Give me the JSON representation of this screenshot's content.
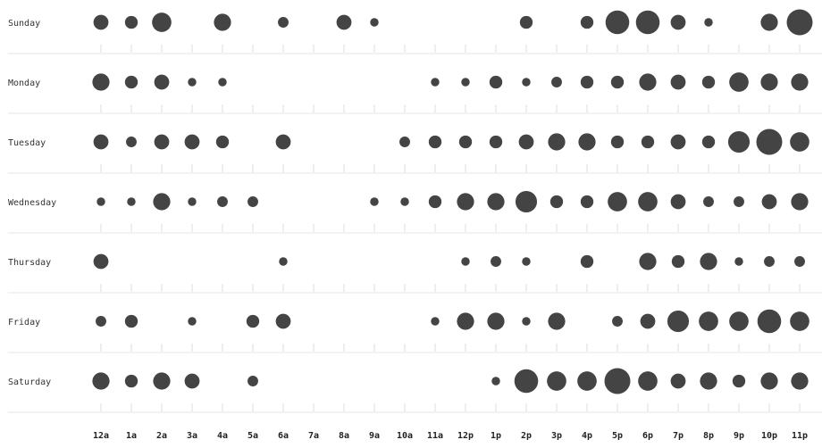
{
  "chart_data": {
    "type": "scatter",
    "title": "",
    "xlabel": "",
    "ylabel": "",
    "x": [
      "12a",
      "1a",
      "2a",
      "3a",
      "4a",
      "5a",
      "6a",
      "7a",
      "8a",
      "9a",
      "10a",
      "11a",
      "12p",
      "1p",
      "2p",
      "3p",
      "4p",
      "5p",
      "6p",
      "7p",
      "8p",
      "9p",
      "10p",
      "11p"
    ],
    "y": [
      "Sunday",
      "Monday",
      "Tuesday",
      "Wednesday",
      "Thursday",
      "Friday",
      "Saturday"
    ],
    "size_encoding": "relative magnitude (0 = no dot)",
    "grid": false,
    "colors": {
      "dot": "#444444",
      "separator": "#e6e6e6",
      "tick": "#dddddd"
    },
    "values": [
      [
        5,
        4,
        7,
        0,
        6,
        0,
        3,
        0,
        5,
        2,
        0,
        0,
        0,
        0,
        4,
        0,
        4,
        9,
        9,
        5,
        2,
        0,
        6,
        10
      ],
      [
        6,
        4,
        5,
        2,
        2,
        0,
        0,
        0,
        0,
        0,
        0,
        2,
        2,
        4,
        2,
        3,
        4,
        4,
        6,
        5,
        4,
        7,
        6,
        6
      ],
      [
        5,
        3,
        5,
        5,
        4,
        0,
        5,
        0,
        0,
        0,
        3,
        4,
        4,
        4,
        5,
        6,
        6,
        4,
        4,
        5,
        4,
        8,
        10,
        7
      ],
      [
        2,
        2,
        6,
        2,
        3,
        3,
        0,
        0,
        0,
        2,
        2,
        4,
        6,
        6,
        8,
        4,
        4,
        7,
        7,
        5,
        3,
        3,
        5,
        6
      ],
      [
        5,
        0,
        0,
        0,
        0,
        0,
        2,
        0,
        0,
        0,
        0,
        0,
        2,
        3,
        2,
        0,
        4,
        0,
        6,
        4,
        6,
        2,
        3,
        3
      ],
      [
        3,
        4,
        0,
        2,
        0,
        4,
        5,
        0,
        0,
        0,
        0,
        2,
        6,
        6,
        2,
        6,
        0,
        3,
        5,
        8,
        7,
        7,
        9,
        7
      ],
      [
        6,
        4,
        6,
        5,
        0,
        3,
        0,
        0,
        0,
        0,
        0,
        0,
        0,
        2,
        9,
        7,
        7,
        10,
        7,
        5,
        6,
        4,
        6,
        6
      ]
    ]
  }
}
